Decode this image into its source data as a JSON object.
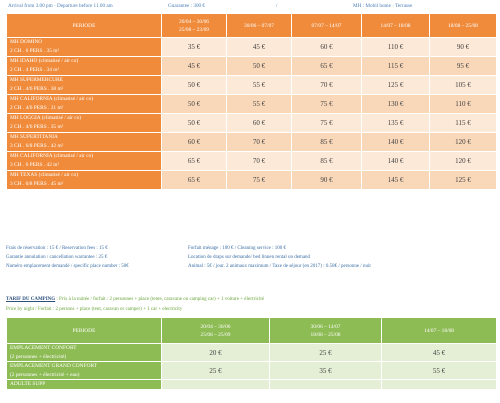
{
  "top_info": {
    "arrival": "Arrival from 3.00 pm · Departure before 11.00 am",
    "guarantee": "Guarantee : 300 €",
    "slash": "/",
    "mobil": "MH : Mobil home · Terrasse"
  },
  "rental_table": {
    "header": [
      "PERIODE",
      "20/04 – 30/06\n25/08 – 23/09",
      "30/06 – 07/07",
      "07/07 – 14/07",
      "14/07 – 18/08",
      "18/08 – 25/08"
    ],
    "rows": [
      {
        "name": "MH DOMINO",
        "detail": "2 CH . 6 PERS . 35 m²",
        "prices": [
          "35 €",
          "45 €",
          "60 €",
          "110 €",
          "90 €"
        ]
      },
      {
        "name": "MH IDAHO (climatisé / air co)",
        "detail": "2 CH . 4 PERS . 34 m²",
        "prices": [
          "45 €",
          "50 €",
          "65 €",
          "115 €",
          "95 €"
        ]
      },
      {
        "name": "MH SUPERMERCURE",
        "detail": "2 CH . 4/6 PERS . 38 m²",
        "prices": [
          "50 €",
          "55 €",
          "70 €",
          "125 €",
          "105 €"
        ]
      },
      {
        "name": "MH CALIFORNIA (climatisé / air co)",
        "detail": "2 CH . 4/6 PERS . 31 m²",
        "prices": [
          "50 €",
          "55 €",
          "75 €",
          "130 €",
          "110 €"
        ]
      },
      {
        "name": "MH LOGGIA (climatisé / air co)",
        "detail": "2 CH . 4/6 PERS . 35 m²",
        "prices": [
          "50 €",
          "60 €",
          "75 €",
          "135 €",
          "115 €"
        ]
      },
      {
        "name": "MH SUPERTITANIA",
        "detail": "3 CH . 6/8 PERS . 42 m²",
        "prices": [
          "60 €",
          "70 €",
          "85 €",
          "140 €",
          "120 €"
        ]
      },
      {
        "name": "MH CALIFORNIA (climatisé / air co)",
        "detail": "3 CH . 6 PERS . 42 m²",
        "prices": [
          "65 €",
          "70 €",
          "85 €",
          "140 €",
          "120 €"
        ]
      },
      {
        "name": "MH TEXAS (climatisé / air co)",
        "detail": "3 CH . 6/8 PERS . 45 m²",
        "prices": [
          "65 €",
          "75 €",
          "90 €",
          "145 €",
          "125 €"
        ]
      }
    ]
  },
  "fees": [
    {
      "left": "Frais de réservation : 15 € / Reservation fees : 15 €",
      "right": "Forfait ménage : 100 € / Cleaning service : 100 €"
    },
    {
      "left": "Garantie annulation / cancellation warrantee : 25 €",
      "right": "Location de draps sur demande/ bed linnen rental on demand"
    },
    {
      "left": "Numéro emplacement demandé / specific place number : 50€",
      "right": "Animal : 5€ / jour. 2 animaux maximum   /   Taxe de séjour (en 2017) : 0.58€ / personne / nuit"
    }
  ],
  "camping": {
    "title": "TARIF DU CAMPING",
    "title_rest": " : Prix à la nuitée / forfait : 2 personnes + place (tente, caravane ou camping car) + 1 voiture + électricité",
    "subtitle": "Price by night / Forfait : 2 persons + place (tent, caravan or camper) + 1 car + electricity",
    "header": [
      "PERIODE",
      "20/04 – 30/06\n25/08 – 25/09",
      "30/06 – 14/07\n18/08 – 25/08",
      "14/07 – 18/08"
    ],
    "rows": [
      {
        "name": "EMPLACEMENT CONFORT",
        "detail": "(2 personnes + électricité)",
        "prices": [
          "20 €",
          "25 €",
          "45 €"
        ]
      },
      {
        "name": "EMPLACEMENT GRAND CONFORT",
        "detail": "(2 personnes + électricité + eau)",
        "prices": [
          "25 €",
          "35 €",
          "55 €"
        ]
      }
    ],
    "cut_row": {
      "name": "ADULTE SUPP",
      "prices": [
        "",
        "",
        ""
      ]
    }
  }
}
